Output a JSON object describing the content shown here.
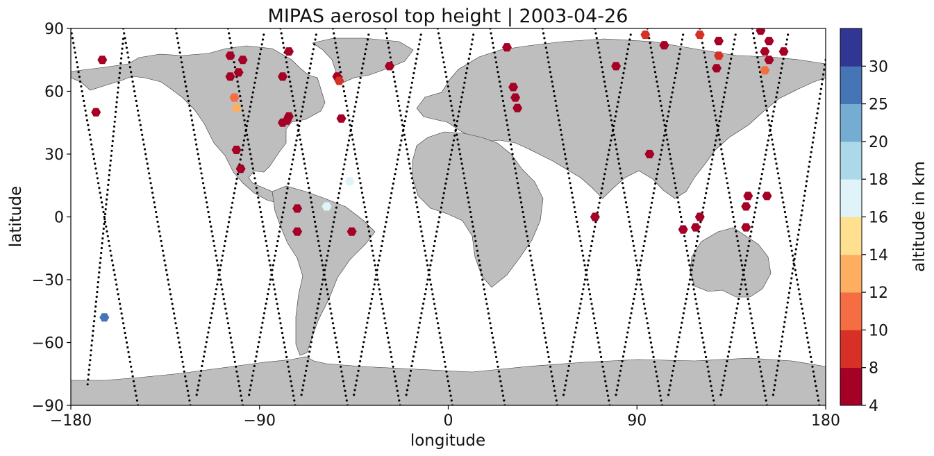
{
  "chart_data": {
    "type": "scatter",
    "title": "MIPAS aerosol top height | 2003-04-26",
    "xlabel": "longitude",
    "ylabel": "latitude",
    "xlim": [
      -180,
      180
    ],
    "ylim": [
      -90,
      90
    ],
    "xticks": [
      -180,
      -90,
      0,
      90,
      180
    ],
    "xtick_labels": [
      "−180",
      "−90",
      "0",
      "90",
      "180"
    ],
    "yticks": [
      -90,
      -60,
      -30,
      0,
      30,
      60,
      90
    ],
    "ytick_labels": [
      "−90",
      "−60",
      "−30",
      "0",
      "30",
      "60",
      "90"
    ],
    "grid": false,
    "colorbar": {
      "label": "altitude in km",
      "boundaries": [
        4,
        8,
        10,
        12,
        14,
        16,
        18,
        20,
        25,
        30
      ],
      "tick_labels": [
        "4",
        "8",
        "10",
        "12",
        "14",
        "16",
        "18",
        "20",
        "25",
        "30"
      ],
      "colors": [
        "#a50026",
        "#d73027",
        "#f46d43",
        "#fdae61",
        "#fee090",
        "#e0f3f8",
        "#abd9e9",
        "#74add1",
        "#4575b4",
        "#313695"
      ]
    },
    "aerosol_points": [
      {
        "lon": -165,
        "lat": 75,
        "alt": 6
      },
      {
        "lon": -168,
        "lat": 50,
        "alt": 6
      },
      {
        "lon": -104,
        "lat": 77,
        "alt": 6
      },
      {
        "lon": -98,
        "lat": 75,
        "alt": 6
      },
      {
        "lon": -104,
        "lat": 67,
        "alt": 6
      },
      {
        "lon": -100,
        "lat": 69,
        "alt": 6
      },
      {
        "lon": -102,
        "lat": 57,
        "alt": 11
      },
      {
        "lon": -101,
        "lat": 52,
        "alt": 12
      },
      {
        "lon": -101,
        "lat": 32,
        "alt": 6
      },
      {
        "lon": -99,
        "lat": 23,
        "alt": 6
      },
      {
        "lon": -76,
        "lat": 79,
        "alt": 6
      },
      {
        "lon": -79,
        "lat": 67,
        "alt": 6
      },
      {
        "lon": -76,
        "lat": 48,
        "alt": 6
      },
      {
        "lon": -79,
        "lat": 45,
        "alt": 6
      },
      {
        "lon": -77,
        "lat": 46,
        "alt": 6
      },
      {
        "lon": -53,
        "lat": 67,
        "alt": 6
      },
      {
        "lon": -52,
        "lat": 65,
        "alt": 9
      },
      {
        "lon": -51,
        "lat": 47,
        "alt": 6
      },
      {
        "lon": -47,
        "lat": 17,
        "alt": 17
      },
      {
        "lon": -58,
        "lat": 5,
        "alt": 17
      },
      {
        "lon": -72,
        "lat": 4,
        "alt": 6
      },
      {
        "lon": -72,
        "lat": -7,
        "alt": 6
      },
      {
        "lon": -46,
        "lat": -7,
        "alt": 6
      },
      {
        "lon": -28,
        "lat": 72,
        "alt": 6
      },
      {
        "lon": -164,
        "lat": -48,
        "alt": 28
      },
      {
        "lon": 28,
        "lat": 81,
        "alt": 6
      },
      {
        "lon": 31,
        "lat": 62,
        "alt": 6
      },
      {
        "lon": 32,
        "lat": 57,
        "alt": 6
      },
      {
        "lon": 33,
        "lat": 52,
        "alt": 6
      },
      {
        "lon": 70,
        "lat": 0,
        "alt": 6
      },
      {
        "lon": 80,
        "lat": 72,
        "alt": 6
      },
      {
        "lon": 94,
        "lat": 87,
        "alt": 9
      },
      {
        "lon": 96,
        "lat": 30,
        "alt": 6
      },
      {
        "lon": 103,
        "lat": 82,
        "alt": 6
      },
      {
        "lon": 120,
        "lat": 87,
        "alt": 9
      },
      {
        "lon": 129,
        "lat": 84,
        "alt": 6
      },
      {
        "lon": 129,
        "lat": 77,
        "alt": 9
      },
      {
        "lon": 128,
        "lat": 71,
        "alt": 6
      },
      {
        "lon": 118,
        "lat": -5,
        "alt": 6
      },
      {
        "lon": 112,
        "lat": -6,
        "alt": 6
      },
      {
        "lon": 120,
        "lat": 0,
        "alt": 6
      },
      {
        "lon": 149,
        "lat": 89,
        "alt": 6
      },
      {
        "lon": 151,
        "lat": 79,
        "alt": 6
      },
      {
        "lon": 153,
        "lat": 84,
        "alt": 6
      },
      {
        "lon": 153,
        "lat": 75,
        "alt": 6
      },
      {
        "lon": 160,
        "lat": 79,
        "alt": 6
      },
      {
        "lon": 151,
        "lat": 70,
        "alt": 11
      },
      {
        "lon": 143,
        "lat": 10,
        "alt": 6
      },
      {
        "lon": 142,
        "lat": 5,
        "alt": 6
      },
      {
        "lon": 152,
        "lat": 10,
        "alt": 6
      },
      {
        "lon": 142,
        "lat": -5,
        "alt": 6
      }
    ],
    "orbit_tracks_descending": [
      [
        -148,
        -90,
        -180,
        90
      ],
      [
        -123,
        -90,
        -155,
        90
      ],
      [
        -98,
        -90,
        -130,
        90
      ],
      [
        -73,
        -90,
        -105,
        90
      ],
      [
        -48,
        -90,
        -80,
        90
      ],
      [
        -23,
        -90,
        -55,
        90
      ],
      [
        2,
        -90,
        -30,
        90
      ],
      [
        27,
        -90,
        -5,
        90
      ],
      [
        52,
        -90,
        20,
        90
      ],
      [
        77,
        -90,
        45,
        90
      ],
      [
        102,
        -90,
        70,
        90
      ],
      [
        127,
        -90,
        95,
        90
      ],
      [
        152,
        -90,
        120,
        90
      ],
      [
        177,
        -90,
        145,
        90
      ]
    ],
    "orbit_tracks_ascending": [
      [
        -172,
        -80,
        -155,
        85
      ],
      [
        -120,
        -85,
        -88,
        87
      ],
      [
        -95,
        -85,
        -63,
        87
      ],
      [
        -70,
        -85,
        -38,
        87
      ],
      [
        -45,
        -85,
        -13,
        87
      ],
      [
        -20,
        -85,
        12,
        87
      ],
      [
        55,
        -85,
        87,
        87
      ],
      [
        80,
        -85,
        112,
        87
      ],
      [
        105,
        -85,
        137,
        87
      ],
      [
        130,
        -85,
        162,
        87
      ],
      [
        155,
        -85,
        180,
        75
      ]
    ]
  }
}
